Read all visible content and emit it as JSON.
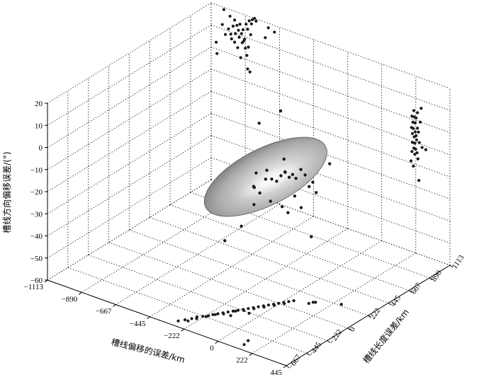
{
  "chart_data": {
    "type": "scatter",
    "dimensions": 3,
    "xlabel": "槽线偏移的误差/km",
    "ylabel": "槽线长度误差/km",
    "zlabel": "槽线方向偏移误差/(°)",
    "x_ticks": [
      "−1113",
      "−890",
      "−667",
      "−445",
      "−222",
      "0",
      "222",
      "445"
    ],
    "y_ticks": [
      "−667",
      "−445",
      "−222",
      "0",
      "222",
      "445",
      "667",
      "890",
      "1113"
    ],
    "z_ticks": [
      "20",
      "10",
      "0",
      "−10",
      "−20",
      "−30",
      "−40",
      "−50",
      "−60"
    ],
    "xlim": [
      -1113,
      445
    ],
    "ylim": [
      -667,
      1113
    ],
    "zlim": [
      -60,
      20
    ],
    "grid": true,
    "ellipsoid": {
      "center": [
        -240,
        250,
        -15
      ],
      "color": "#b9b9b9",
      "shading": "gray gradient"
    },
    "point_color": "#1a1a1a",
    "projections": {
      "left_wall_xz": [
        [
          -1080,
          3
        ],
        [
          -1075,
          -2
        ],
        [
          -1040,
          12
        ],
        [
          -1020,
          8
        ],
        [
          -1000,
          11
        ],
        [
          -985,
          9
        ],
        [
          -970,
          13
        ],
        [
          -960,
          16
        ],
        [
          -955,
          10
        ],
        [
          -945,
          14
        ],
        [
          -935,
          12
        ],
        [
          -925,
          15
        ],
        [
          -915,
          11
        ],
        [
          -905,
          13
        ],
        [
          -895,
          9
        ],
        [
          -885,
          16
        ],
        [
          -875,
          14
        ],
        [
          -865,
          18
        ],
        [
          -855,
          12
        ],
        [
          -990,
          17
        ],
        [
          -960,
          6
        ],
        [
          -940,
          4
        ],
        [
          -920,
          0
        ],
        [
          -900,
          8
        ],
        [
          -880,
          2
        ],
        [
          -870,
          6
        ],
        [
          -850,
          17
        ],
        [
          -845,
          19
        ],
        [
          -830,
          20
        ],
        [
          -820,
          19
        ],
        [
          -930,
          9
        ],
        [
          -910,
          7
        ],
        [
          -890,
          5
        ],
        [
          -980,
          7
        ],
        [
          -860,
          -5
        ],
        [
          -875,
          -4
        ],
        [
          -1030,
          19
        ],
        [
          -760,
          13
        ],
        [
          -740,
          18
        ],
        [
          -700,
          17
        ]
      ],
      "right_wall_yz": [
        [
          700,
          18
        ],
        [
          710,
          15
        ],
        [
          720,
          20
        ],
        [
          715,
          12
        ],
        [
          705,
          10
        ],
        [
          725,
          8
        ],
        [
          735,
          14
        ],
        [
          745,
          16
        ],
        [
          730,
          5
        ],
        [
          720,
          3
        ],
        [
          740,
          2
        ],
        [
          750,
          6
        ],
        [
          760,
          11
        ],
        [
          770,
          9
        ],
        [
          755,
          0
        ],
        [
          765,
          -3
        ],
        [
          780,
          4
        ],
        [
          790,
          13
        ],
        [
          800,
          19
        ],
        [
          810,
          1
        ],
        [
          700,
          2
        ],
        [
          690,
          -2
        ],
        [
          715,
          -5
        ],
        [
          850,
          -1
        ],
        [
          730,
          0
        ],
        [
          745,
          8
        ],
        [
          760,
          18
        ],
        [
          775,
          -13
        ],
        [
          705,
          6
        ],
        [
          735,
          10
        ],
        [
          695,
          13
        ],
        [
          725,
          17
        ]
      ],
      "floor_xy": [
        [
          -300,
          -600
        ],
        [
          -280,
          -560
        ],
        [
          -260,
          -520
        ],
        [
          -250,
          -480
        ],
        [
          -230,
          -450
        ],
        [
          -210,
          -420
        ],
        [
          -200,
          -390
        ],
        [
          -185,
          -360
        ],
        [
          -170,
          -330
        ],
        [
          -155,
          -300
        ],
        [
          -140,
          -270
        ],
        [
          -125,
          -240
        ],
        [
          -110,
          -210
        ],
        [
          -95,
          -180
        ],
        [
          -80,
          -150
        ],
        [
          -65,
          -120
        ],
        [
          -50,
          -90
        ],
        [
          -35,
          -60
        ],
        [
          -20,
          -30
        ],
        [
          -5,
          0
        ],
        [
          10,
          30
        ],
        [
          25,
          60
        ],
        [
          40,
          90
        ],
        [
          -260,
          -560
        ],
        [
          -240,
          -500
        ],
        [
          -215,
          -440
        ],
        [
          -190,
          -380
        ],
        [
          -160,
          -340
        ],
        [
          -130,
          -260
        ],
        [
          -100,
          -220
        ],
        [
          -70,
          -160
        ],
        [
          -40,
          -100
        ],
        [
          -10,
          -40
        ],
        [
          20,
          20
        ],
        [
          120,
          120
        ],
        [
          130,
          150
        ],
        [
          140,
          160
        ],
        [
          260,
          240
        ],
        [
          -120,
          -330
        ],
        [
          -60,
          -230
        ],
        [
          120,
          -540
        ],
        [
          130,
          -600
        ]
      ],
      "interior": [
        [
          -180,
          150,
          -12
        ],
        [
          -190,
          180,
          -9
        ],
        [
          -170,
          200,
          -13
        ],
        [
          -150,
          220,
          -14
        ],
        [
          -140,
          250,
          -12
        ],
        [
          -120,
          260,
          -10
        ],
        [
          -130,
          280,
          -11
        ],
        [
          -110,
          290,
          -13
        ],
        [
          -100,
          310,
          -12
        ],
        [
          -90,
          330,
          -14
        ],
        [
          -70,
          350,
          -10
        ],
        [
          -60,
          380,
          -13
        ],
        [
          -200,
          120,
          -18
        ],
        [
          -160,
          170,
          -22
        ],
        [
          -120,
          230,
          -25
        ],
        [
          -80,
          300,
          -21
        ],
        [
          -40,
          390,
          -18
        ],
        [
          0,
          400,
          -20
        ],
        [
          -230,
          110,
          -16
        ],
        [
          -250,
          140,
          -25
        ],
        [
          -210,
          70,
          -14
        ],
        [
          -100,
          260,
          -28
        ],
        [
          -50,
          320,
          -26
        ],
        [
          -10,
          380,
          -15
        ],
        [
          40,
          480,
          -8
        ],
        [
          -320,
          120,
          -36
        ],
        [
          -380,
          40,
          -42
        ],
        [
          -80,
          480,
          -44
        ],
        [
          -330,
          330,
          5
        ],
        [
          -220,
          380,
          12
        ],
        [
          -290,
          230,
          -14
        ],
        [
          -150,
          300,
          -6
        ]
      ]
    }
  }
}
